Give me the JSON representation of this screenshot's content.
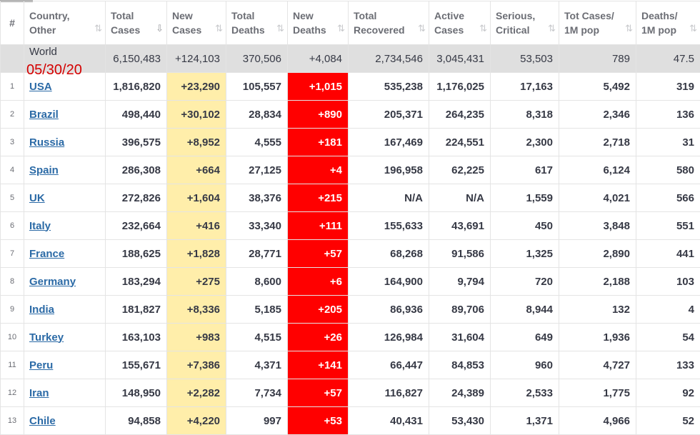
{
  "headers": [
    {
      "line1": "#",
      "line2": ""
    },
    {
      "line1": "Country,",
      "line2": "Other"
    },
    {
      "line1": "Total",
      "line2": "Cases"
    },
    {
      "line1": "New",
      "line2": "Cases"
    },
    {
      "line1": "Total",
      "line2": "Deaths"
    },
    {
      "line1": "New",
      "line2": "Deaths"
    },
    {
      "line1": "Total",
      "line2": "Recovered"
    },
    {
      "line1": "Active",
      "line2": "Cases"
    },
    {
      "line1": "Serious,",
      "line2": "Critical"
    },
    {
      "line1": "Tot Cases/",
      "line2": "1M pop"
    },
    {
      "line1": "Deaths/",
      "line2": "1M pop"
    }
  ],
  "sort_glyphs": {
    "default": "⇅",
    "active": "⇩"
  },
  "world": {
    "country": "World",
    "total_cases": "6,150,483",
    "new_cases": "+124,103",
    "total_deaths": "370,506",
    "new_deaths": "+4,084",
    "total_recovered": "2,734,546",
    "active_cases": "3,045,431",
    "serious": "53,503",
    "cases_per_m": "789",
    "deaths_per_m": "47.5"
  },
  "date_annotation": "05/30/20",
  "rows": [
    {
      "num": "1",
      "country": "USA",
      "total_cases": "1,816,820",
      "new_cases": "+23,290",
      "total_deaths": "105,557",
      "new_deaths": "+1,015",
      "total_recovered": "535,238",
      "active_cases": "1,176,025",
      "serious": "17,163",
      "cases_per_m": "5,492",
      "deaths_per_m": "319"
    },
    {
      "num": "2",
      "country": "Brazil",
      "total_cases": "498,440",
      "new_cases": "+30,102",
      "total_deaths": "28,834",
      "new_deaths": "+890",
      "total_recovered": "205,371",
      "active_cases": "264,235",
      "serious": "8,318",
      "cases_per_m": "2,346",
      "deaths_per_m": "136"
    },
    {
      "num": "3",
      "country": "Russia",
      "total_cases": "396,575",
      "new_cases": "+8,952",
      "total_deaths": "4,555",
      "new_deaths": "+181",
      "total_recovered": "167,469",
      "active_cases": "224,551",
      "serious": "2,300",
      "cases_per_m": "2,718",
      "deaths_per_m": "31"
    },
    {
      "num": "4",
      "country": "Spain",
      "total_cases": "286,308",
      "new_cases": "+664",
      "total_deaths": "27,125",
      "new_deaths": "+4",
      "total_recovered": "196,958",
      "active_cases": "62,225",
      "serious": "617",
      "cases_per_m": "6,124",
      "deaths_per_m": "580"
    },
    {
      "num": "5",
      "country": "UK",
      "total_cases": "272,826",
      "new_cases": "+1,604",
      "total_deaths": "38,376",
      "new_deaths": "+215",
      "total_recovered": "N/A",
      "active_cases": "N/A",
      "serious": "1,559",
      "cases_per_m": "4,021",
      "deaths_per_m": "566"
    },
    {
      "num": "6",
      "country": "Italy",
      "total_cases": "232,664",
      "new_cases": "+416",
      "total_deaths": "33,340",
      "new_deaths": "+111",
      "total_recovered": "155,633",
      "active_cases": "43,691",
      "serious": "450",
      "cases_per_m": "3,848",
      "deaths_per_m": "551"
    },
    {
      "num": "7",
      "country": "France",
      "total_cases": "188,625",
      "new_cases": "+1,828",
      "total_deaths": "28,771",
      "new_deaths": "+57",
      "total_recovered": "68,268",
      "active_cases": "91,586",
      "serious": "1,325",
      "cases_per_m": "2,890",
      "deaths_per_m": "441"
    },
    {
      "num": "8",
      "country": "Germany",
      "total_cases": "183,294",
      "new_cases": "+275",
      "total_deaths": "8,600",
      "new_deaths": "+6",
      "total_recovered": "164,900",
      "active_cases": "9,794",
      "serious": "720",
      "cases_per_m": "2,188",
      "deaths_per_m": "103"
    },
    {
      "num": "9",
      "country": "India",
      "total_cases": "181,827",
      "new_cases": "+8,336",
      "total_deaths": "5,185",
      "new_deaths": "+205",
      "total_recovered": "86,936",
      "active_cases": "89,706",
      "serious": "8,944",
      "cases_per_m": "132",
      "deaths_per_m": "4"
    },
    {
      "num": "10",
      "country": "Turkey",
      "total_cases": "163,103",
      "new_cases": "+983",
      "total_deaths": "4,515",
      "new_deaths": "+26",
      "total_recovered": "126,984",
      "active_cases": "31,604",
      "serious": "649",
      "cases_per_m": "1,936",
      "deaths_per_m": "54"
    },
    {
      "num": "11",
      "country": "Peru",
      "total_cases": "155,671",
      "new_cases": "+7,386",
      "total_deaths": "4,371",
      "new_deaths": "+141",
      "total_recovered": "66,447",
      "active_cases": "84,853",
      "serious": "960",
      "cases_per_m": "4,727",
      "deaths_per_m": "133"
    },
    {
      "num": "12",
      "country": "Iran",
      "total_cases": "148,950",
      "new_cases": "+2,282",
      "total_deaths": "7,734",
      "new_deaths": "+57",
      "total_recovered": "116,827",
      "active_cases": "24,389",
      "serious": "2,533",
      "cases_per_m": "1,775",
      "deaths_per_m": "92"
    },
    {
      "num": "13",
      "country": "Chile",
      "total_cases": "94,858",
      "new_cases": "+4,220",
      "total_deaths": "997",
      "new_deaths": "+53",
      "total_recovered": "40,431",
      "active_cases": "53,430",
      "serious": "1,371",
      "cases_per_m": "4,966",
      "deaths_per_m": "52"
    }
  ]
}
